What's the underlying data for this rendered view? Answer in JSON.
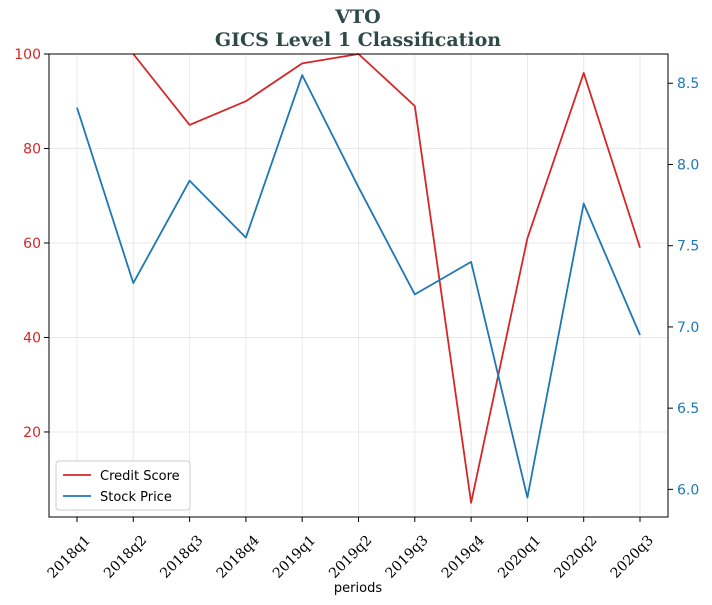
{
  "chart_data": {
    "type": "line",
    "title": "VTO",
    "subtitle": "GICS Level 1 Classification",
    "xlabel": "periods",
    "categories": [
      "2018q1",
      "2018q2",
      "2018q3",
      "2018q4",
      "2019q1",
      "2019q2",
      "2019q3",
      "2019q4",
      "2020q1",
      "2020q2",
      "2020q3"
    ],
    "left_axis": {
      "ylim": [
        2,
        100
      ],
      "ticks": [
        "20",
        "40",
        "60",
        "80",
        "100"
      ],
      "color": "#d62728"
    },
    "right_axis": {
      "ylim": [
        5.83,
        8.68
      ],
      "ticks": [
        "6.0",
        "6.5",
        "7.0",
        "7.5",
        "8.0",
        "8.5"
      ],
      "color": "#1f77b4"
    },
    "series": [
      {
        "name": "Credit Score",
        "axis": "left",
        "color": "#d62728",
        "values": [
          null,
          100,
          85,
          90,
          98,
          100,
          89,
          5,
          61,
          96,
          59
        ]
      },
      {
        "name": "Stock Price",
        "axis": "right",
        "color": "#1f77b4",
        "values": [
          8.35,
          7.27,
          7.9,
          7.55,
          8.55,
          7.86,
          7.2,
          7.4,
          5.95,
          7.76,
          6.95
        ]
      }
    ],
    "grid": true,
    "legend_position": "bottom-left"
  }
}
